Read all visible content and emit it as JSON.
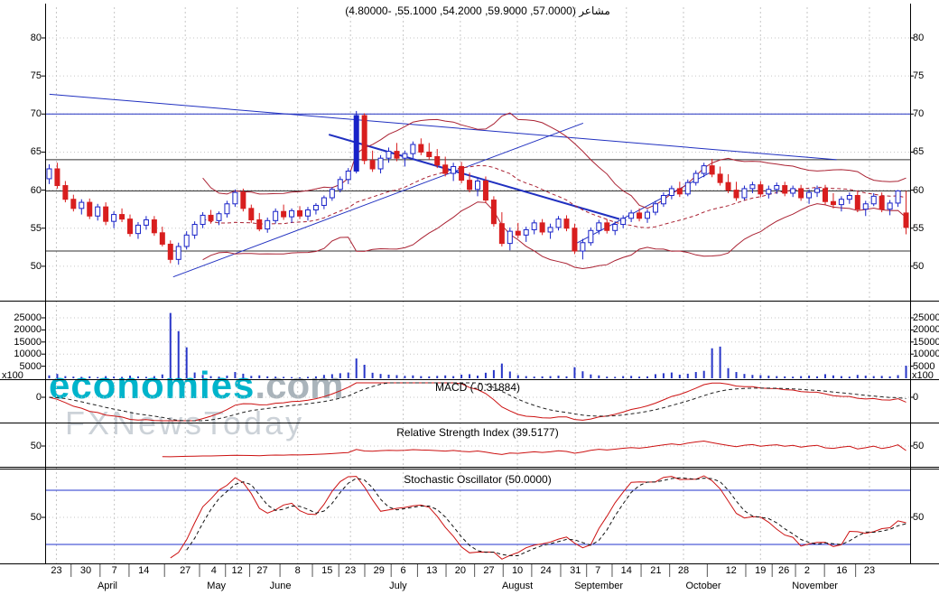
{
  "title": "مشاعر (57.0000, 59.9000, 54.2000, 55.1000, -4.80000)",
  "quote": {
    "open": 57.0,
    "high": 59.9,
    "low": 54.2,
    "close": 55.1,
    "change": -4.8
  },
  "watermark": {
    "brand": "economies",
    "domain": ".com",
    "subtitle": "FXNewsToday"
  },
  "indicators": {
    "macd": {
      "label": "MACD (-0.31884)",
      "value": -0.31884
    },
    "rsi": {
      "label": "Relative Strength Index (39.5177)",
      "value": 39.5177
    },
    "stoch": {
      "label": "Stochastic Oscillator (50.0000)",
      "value": 50.0
    }
  },
  "axes": {
    "price_ticks": [
      80,
      75,
      70,
      65,
      60,
      55,
      50
    ],
    "volume_ticks": [
      25000,
      20000,
      15000,
      10000,
      5000
    ],
    "volume_unit": "x100",
    "macd_ticks": [
      0
    ],
    "rsi_ticks": [
      50
    ],
    "stoch_ticks": [
      50
    ]
  },
  "colors": {
    "up": "#1822c8",
    "down": "#d81e1e",
    "band": "#aa2233",
    "trend": "#2030c0",
    "grid": "#c6c6c6",
    "level": "#303030",
    "volume": "#2836c8",
    "macd": "#cc1111",
    "signal": "#222222",
    "rsi_line": "#cc1111",
    "stoch_k": "#cc1111",
    "stoch_d": "#111111",
    "stoch_band": "#2233cc",
    "watermark_brand": "#00b4cb",
    "watermark_gray": "#ccd2d8"
  },
  "chart_data": {
    "type": "candlestick",
    "columns": [
      "open",
      "high",
      "low",
      "close",
      "volume"
    ],
    "price_range": [
      50,
      80
    ],
    "volume_range": [
      0,
      27000
    ],
    "price_grid": [
      50,
      55,
      60,
      65,
      70,
      75,
      80
    ],
    "hlines": {
      "black": [
        64.0,
        59.9,
        52.0
      ],
      "blue": [
        70.0
      ]
    },
    "stoch_lines": [
      80,
      20
    ],
    "trendlines": [
      {
        "x1": 0.005,
        "p1": 72.6,
        "x2": 0.915,
        "p2": 64.0,
        "w": 1
      },
      {
        "x1": 0.148,
        "p1": 48.6,
        "x2": 0.622,
        "p2": 68.8,
        "w": 1
      },
      {
        "x1": 0.328,
        "p1": 67.3,
        "x2": 0.664,
        "p2": 56.2,
        "w": 2
      },
      {
        "x1": 0.614,
        "p1": 53.0,
        "x2": 0.772,
        "p2": 62.5,
        "w": 1
      }
    ],
    "x_ticks": [
      {
        "label": "23",
        "pos": 0.013
      },
      {
        "label": "30",
        "pos": 0.047
      },
      {
        "label": "7",
        "pos": 0.08
      },
      {
        "label": "14",
        "pos": 0.114
      },
      {
        "label": "27",
        "pos": 0.162
      },
      {
        "label": "4",
        "pos": 0.195
      },
      {
        "label": "12",
        "pos": 0.222
      },
      {
        "label": "27",
        "pos": 0.251
      },
      {
        "label": "8",
        "pos": 0.292
      },
      {
        "label": "15",
        "pos": 0.326
      },
      {
        "label": "23",
        "pos": 0.353
      },
      {
        "label": "29",
        "pos": 0.386
      },
      {
        "label": "6",
        "pos": 0.414
      },
      {
        "label": "13",
        "pos": 0.447
      },
      {
        "label": "20",
        "pos": 0.48
      },
      {
        "label": "27",
        "pos": 0.513
      },
      {
        "label": "10",
        "pos": 0.546
      },
      {
        "label": "24",
        "pos": 0.579
      },
      {
        "label": "31",
        "pos": 0.613
      },
      {
        "label": "7",
        "pos": 0.639
      },
      {
        "label": "14",
        "pos": 0.672
      },
      {
        "label": "21",
        "pos": 0.706
      },
      {
        "label": "28",
        "pos": 0.738
      },
      {
        "label": "12",
        "pos": 0.793
      },
      {
        "label": "19",
        "pos": 0.827
      },
      {
        "label": "26",
        "pos": 0.854
      },
      {
        "label": "2",
        "pos": 0.881
      },
      {
        "label": "16",
        "pos": 0.921
      },
      {
        "label": "23",
        "pos": 0.953
      }
    ],
    "months": [
      {
        "label": "April",
        "pos": 0.072
      },
      {
        "label": "May",
        "pos": 0.198
      },
      {
        "label": "June",
        "pos": 0.272
      },
      {
        "label": "July",
        "pos": 0.408
      },
      {
        "label": "August",
        "pos": 0.546
      },
      {
        "label": "September",
        "pos": 0.64
      },
      {
        "label": "October",
        "pos": 0.761
      },
      {
        "label": "November",
        "pos": 0.89
      }
    ],
    "ohlcv": [
      [
        61.5,
        63.4,
        60.8,
        62.8,
        1200
      ],
      [
        62.8,
        63.6,
        60.2,
        60.6,
        1800
      ],
      [
        60.6,
        61.2,
        58.4,
        58.8,
        900
      ],
      [
        58.8,
        59.4,
        57.2,
        57.6,
        700
      ],
      [
        57.6,
        58.8,
        56.8,
        58.4,
        600
      ],
      [
        58.4,
        58.9,
        56.2,
        56.6,
        800
      ],
      [
        56.6,
        58.2,
        56.0,
        57.8,
        500
      ],
      [
        57.8,
        58.4,
        55.4,
        55.9,
        900
      ],
      [
        55.9,
        57.2,
        55.0,
        56.8,
        700
      ],
      [
        56.8,
        57.6,
        55.8,
        56.2,
        600
      ],
      [
        56.2,
        56.8,
        53.9,
        54.3,
        1100
      ],
      [
        54.3,
        55.8,
        53.6,
        55.4,
        800
      ],
      [
        55.4,
        56.6,
        54.8,
        56.1,
        600
      ],
      [
        56.1,
        56.6,
        54.0,
        54.4,
        900
      ],
      [
        54.4,
        55.2,
        52.6,
        52.9,
        1600
      ],
      [
        52.9,
        53.4,
        50.4,
        50.9,
        27000
      ],
      [
        50.9,
        53.1,
        50.2,
        52.6,
        19500
      ],
      [
        52.6,
        54.6,
        52.2,
        54.1,
        12800
      ],
      [
        54.1,
        55.9,
        53.6,
        55.5,
        2400
      ],
      [
        55.5,
        57.1,
        55.0,
        56.7,
        1400
      ],
      [
        56.7,
        57.4,
        55.6,
        56.0,
        900
      ],
      [
        56.0,
        57.2,
        55.4,
        56.9,
        700
      ],
      [
        56.9,
        58.6,
        56.4,
        58.2,
        1100
      ],
      [
        58.2,
        60.1,
        57.8,
        59.7,
        2600
      ],
      [
        59.7,
        60.2,
        57.2,
        57.6,
        1900
      ],
      [
        57.6,
        58.1,
        55.7,
        56.1,
        1000
      ],
      [
        56.1,
        57.0,
        54.6,
        54.9,
        1200
      ],
      [
        54.9,
        56.4,
        54.4,
        56.0,
        800
      ],
      [
        56.0,
        57.6,
        55.6,
        57.2,
        700
      ],
      [
        57.2,
        58.1,
        56.1,
        56.5,
        600
      ],
      [
        56.5,
        57.6,
        55.7,
        57.3,
        500
      ],
      [
        57.3,
        57.9,
        56.2,
        56.6,
        400
      ],
      [
        56.6,
        57.8,
        56.0,
        57.4,
        600
      ],
      [
        57.4,
        58.3,
        56.8,
        58.0,
        800
      ],
      [
        58.0,
        59.3,
        57.5,
        59.0,
        1400
      ],
      [
        59.0,
        60.4,
        58.6,
        60.1,
        1700
      ],
      [
        60.1,
        61.8,
        59.7,
        61.4,
        2100
      ],
      [
        61.4,
        62.9,
        60.8,
        62.5,
        2400
      ],
      [
        62.5,
        70.4,
        62.2,
        69.8,
        8200
      ],
      [
        69.8,
        70.1,
        63.4,
        63.9,
        5600
      ],
      [
        63.9,
        65.2,
        62.4,
        62.8,
        2300
      ],
      [
        62.8,
        64.6,
        62.2,
        64.2,
        1800
      ],
      [
        64.2,
        65.6,
        63.6,
        65.1,
        1500
      ],
      [
        65.1,
        66.2,
        63.8,
        64.2,
        1300
      ],
      [
        64.2,
        65.2,
        63.1,
        64.8,
        1000
      ],
      [
        64.8,
        66.4,
        64.2,
        66.0,
        1200
      ],
      [
        66.0,
        66.8,
        64.6,
        65.0,
        900
      ],
      [
        65.0,
        66.2,
        64.0,
        64.4,
        800
      ],
      [
        64.4,
        65.4,
        62.9,
        63.3,
        1000
      ],
      [
        63.3,
        64.4,
        61.8,
        62.2,
        1200
      ],
      [
        62.2,
        63.6,
        61.2,
        63.1,
        900
      ],
      [
        63.1,
        63.7,
        60.9,
        61.3,
        1500
      ],
      [
        61.3,
        62.3,
        59.7,
        60.1,
        1700
      ],
      [
        60.1,
        61.6,
        59.2,
        61.2,
        1100
      ],
      [
        61.2,
        61.8,
        58.3,
        58.7,
        2300
      ],
      [
        58.7,
        59.2,
        55.2,
        55.6,
        3400
      ],
      [
        55.6,
        57.1,
        52.6,
        53.0,
        6100
      ],
      [
        53.0,
        55.1,
        52.1,
        54.6,
        2800
      ],
      [
        54.6,
        55.7,
        53.7,
        54.1,
        1300
      ],
      [
        54.1,
        55.2,
        53.2,
        54.8,
        900
      ],
      [
        54.8,
        56.1,
        54.2,
        55.7,
        700
      ],
      [
        55.7,
        56.2,
        54.1,
        54.5,
        800
      ],
      [
        54.5,
        55.6,
        53.6,
        55.1,
        900
      ],
      [
        55.1,
        56.6,
        54.7,
        56.2,
        1100
      ],
      [
        56.2,
        56.7,
        54.6,
        55.0,
        800
      ],
      [
        55.0,
        55.6,
        51.6,
        52.0,
        4600
      ],
      [
        52.0,
        53.6,
        50.9,
        53.1,
        2900
      ],
      [
        53.1,
        55.1,
        52.7,
        54.7,
        1600
      ],
      [
        54.7,
        56.1,
        54.2,
        55.7,
        1200
      ],
      [
        55.7,
        56.2,
        54.3,
        54.7,
        700
      ],
      [
        54.7,
        55.9,
        54.1,
        55.5,
        600
      ],
      [
        55.5,
        56.7,
        55.0,
        56.3,
        900
      ],
      [
        56.3,
        57.4,
        55.8,
        57.0,
        1000
      ],
      [
        57.0,
        57.6,
        55.9,
        56.3,
        700
      ],
      [
        56.3,
        57.5,
        55.7,
        57.1,
        800
      ],
      [
        57.1,
        58.6,
        56.7,
        58.2,
        1700
      ],
      [
        58.2,
        59.7,
        57.8,
        59.3,
        2100
      ],
      [
        59.3,
        60.6,
        58.8,
        60.2,
        2400
      ],
      [
        60.2,
        61.1,
        59.1,
        59.5,
        1500
      ],
      [
        59.5,
        61.4,
        59.2,
        61.0,
        1900
      ],
      [
        61.0,
        62.6,
        60.6,
        62.2,
        2600
      ],
      [
        62.2,
        63.6,
        61.7,
        63.2,
        3100
      ],
      [
        63.2,
        64.1,
        61.7,
        62.1,
        12400
      ],
      [
        62.1,
        63.1,
        60.6,
        61.0,
        13100
      ],
      [
        61.0,
        62.1,
        59.6,
        60.0,
        4200
      ],
      [
        60.0,
        61.1,
        58.6,
        59.0,
        2600
      ],
      [
        59.0,
        60.6,
        58.7,
        60.2,
        1800
      ],
      [
        60.2,
        61.1,
        59.6,
        60.7,
        1400
      ],
      [
        60.7,
        61.2,
        59.1,
        59.5,
        1300
      ],
      [
        59.5,
        60.6,
        58.9,
        60.1,
        1100
      ],
      [
        60.1,
        61.0,
        59.5,
        60.6,
        900
      ],
      [
        60.6,
        61.1,
        59.2,
        59.6,
        800
      ],
      [
        59.6,
        60.6,
        59.1,
        60.2,
        700
      ],
      [
        60.2,
        60.7,
        58.6,
        59.0,
        900
      ],
      [
        59.0,
        60.1,
        58.2,
        59.7,
        1100
      ],
      [
        59.7,
        60.6,
        59.1,
        60.2,
        800
      ],
      [
        60.2,
        60.7,
        58.1,
        58.5,
        1700
      ],
      [
        58.5,
        59.6,
        57.6,
        58.1,
        1200
      ],
      [
        58.1,
        59.2,
        57.2,
        58.8,
        900
      ],
      [
        58.8,
        59.7,
        58.2,
        59.3,
        700
      ],
      [
        59.3,
        59.8,
        57.1,
        57.5,
        1400
      ],
      [
        57.5,
        58.6,
        56.6,
        58.2,
        1100
      ],
      [
        58.2,
        59.6,
        57.9,
        59.2,
        900
      ],
      [
        59.2,
        59.7,
        57.1,
        57.5,
        1000
      ],
      [
        57.5,
        58.7,
        56.7,
        58.3,
        800
      ],
      [
        58.3,
        60.0,
        57.8,
        59.9,
        1300
      ],
      [
        57.0,
        59.9,
        54.2,
        55.1,
        5200
      ]
    ]
  }
}
